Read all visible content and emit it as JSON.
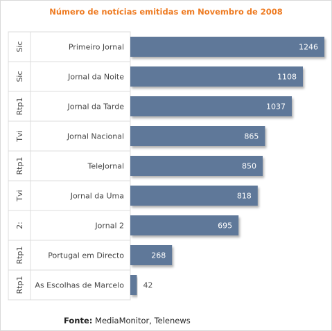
{
  "chart_data": {
    "type": "bar",
    "orientation": "horizontal",
    "title": "Número de notícias emitidas em Novembro de 2008",
    "categories": [
      "Primeiro Jornal",
      "Jornal da Noite",
      "Jornal da Tarde",
      "Jornal Nacional",
      "TeleJornal",
      "Jornal da Uma",
      "Jornal 2",
      "Portugal em Directo",
      "As Escolhas de Marcelo"
    ],
    "groups": [
      "Sic",
      "Sic",
      "Rtp1",
      "Tvi",
      "Rtp1",
      "Tvi",
      "2:",
      "Rtp1",
      "Rtp1"
    ],
    "values": [
      1246,
      1108,
      1037,
      865,
      850,
      818,
      695,
      268,
      42
    ],
    "xlim": [
      0,
      1246
    ],
    "grid": false,
    "data_labels": true
  },
  "colors": {
    "bar": "#5f7899",
    "title": "#ee7b22",
    "label_inside": "#ffffff",
    "label_outside": "#555555"
  },
  "source": {
    "label": "Fonte:",
    "text": "MediaMonitor, Telenews"
  }
}
